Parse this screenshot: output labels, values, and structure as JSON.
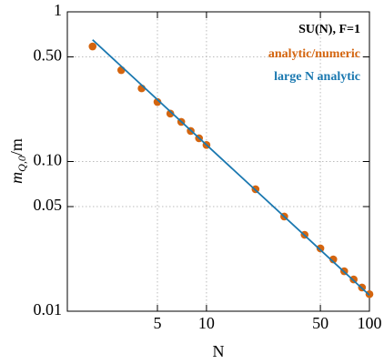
{
  "chart_data": {
    "type": "scatter",
    "x_label": "N",
    "y_label": {
      "main": "m",
      "sub": "Q,0",
      "rest": "/m"
    },
    "log_x": true,
    "log_y": true,
    "grid": true,
    "legend_title": "SU(N), F=1",
    "legend_position": "upper right",
    "xlim": [
      1.4,
      100
    ],
    "ylim": [
      0.01,
      1
    ],
    "xticks": [
      5,
      10,
      50,
      100
    ],
    "yticks": [
      0.01,
      0.05,
      {
        "value": 0.1,
        "label": "0.10"
      },
      {
        "value": 0.5,
        "label": "0.50"
      },
      1
    ],
    "series": [
      {
        "name": "analytic/numeric",
        "color": "#d4650f",
        "style": "marker",
        "x": [
          2,
          3,
          4,
          5,
          6,
          7,
          8,
          9,
          10,
          20,
          30,
          40,
          50,
          60,
          70,
          80,
          90,
          100
        ],
        "values": [
          0.587,
          0.408,
          0.308,
          0.25,
          0.209,
          0.184,
          0.16,
          0.143,
          0.129,
          0.0653,
          0.0429,
          0.0324,
          0.0263,
          0.0222,
          0.0185,
          0.0163,
          0.0144,
          0.013
        ]
      },
      {
        "name": "large N analytic",
        "color": "#1a78b0",
        "style": "line",
        "x": [
          2,
          100
        ],
        "values": [
          0.65,
          0.0128
        ]
      }
    ]
  }
}
